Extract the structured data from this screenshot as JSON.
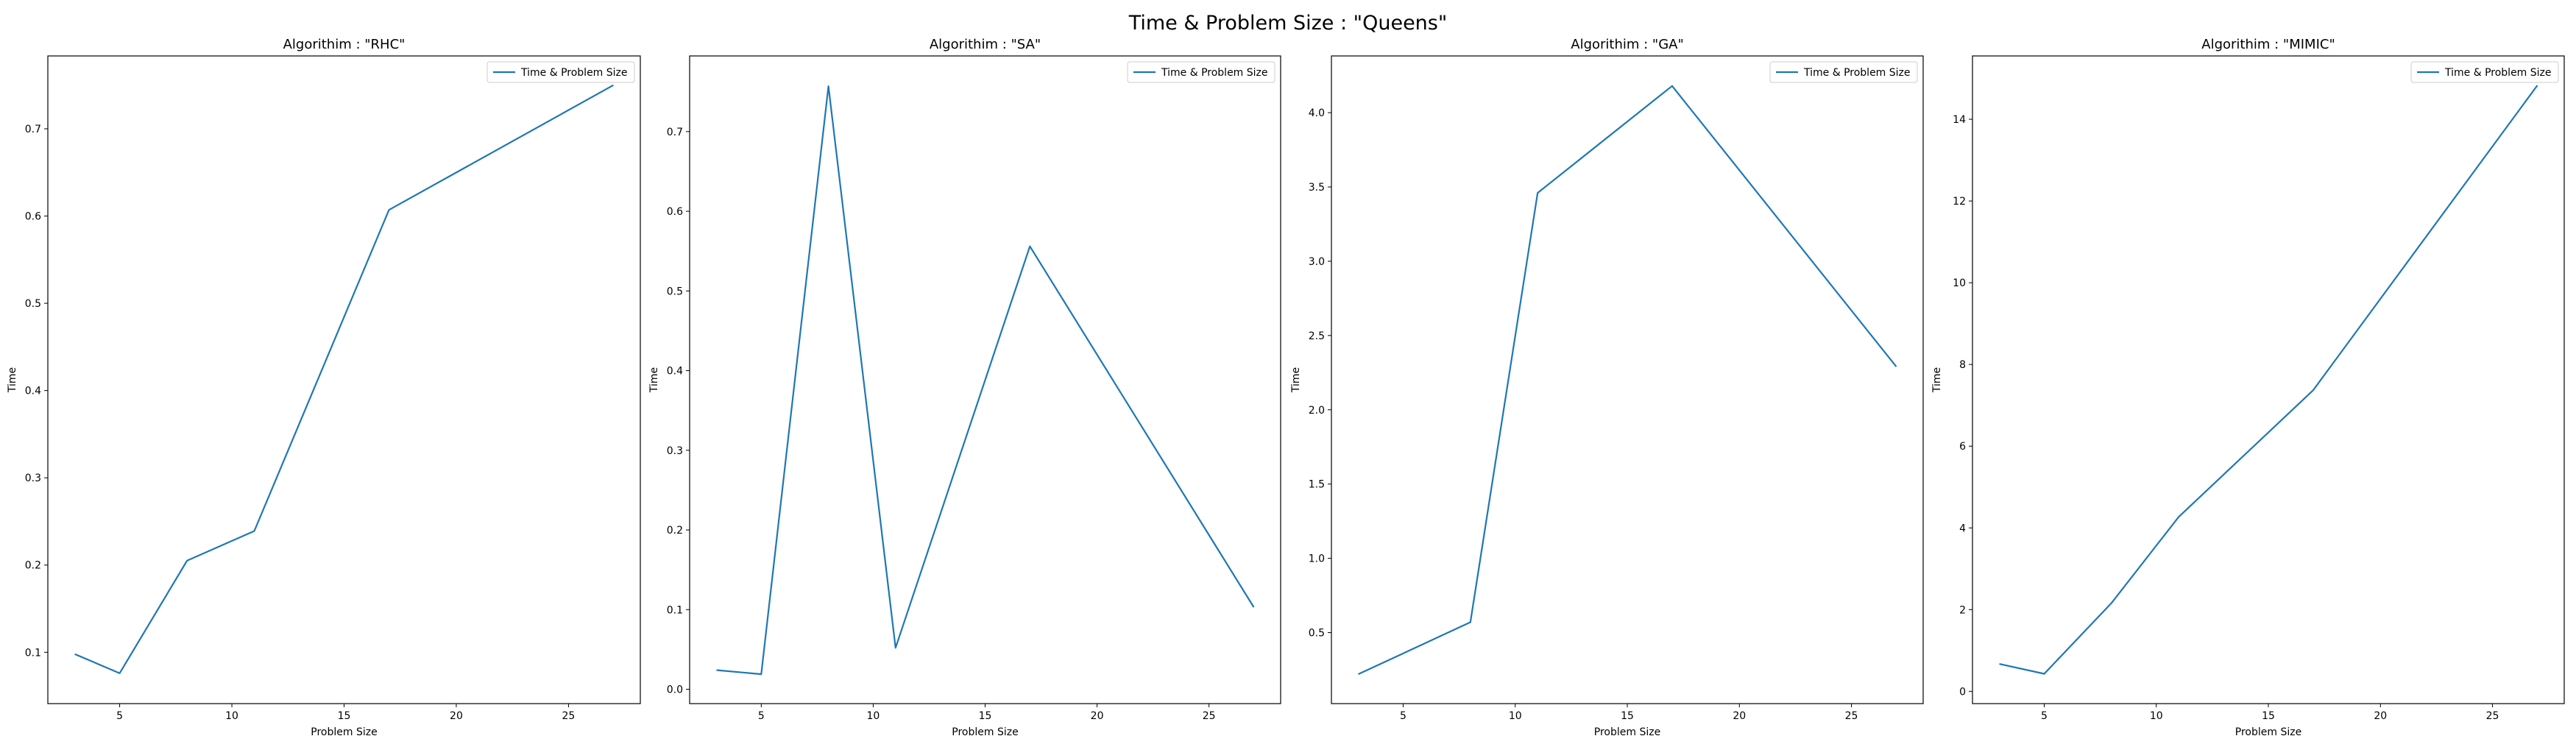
{
  "figure": {
    "title": "Time & Problem Size : \"Queens\""
  },
  "style": {
    "line_color": "#1f77b4",
    "axes_color": "#000000",
    "legend_border_color": "#cccccc"
  },
  "chart_data": [
    {
      "type": "line",
      "title": "Algorithim : \"RHC\"",
      "xlabel": "Problem Size",
      "ylabel": "Time",
      "xlim": [
        1.8,
        28.2
      ],
      "ylim": [
        0.0412,
        0.7835
      ],
      "xticks": [
        5,
        10,
        15,
        20,
        25
      ],
      "yticks": [
        0.1,
        0.2,
        0.3,
        0.4,
        0.5,
        0.6,
        0.7
      ],
      "grid": false,
      "legend_position": "top-right",
      "series": [
        {
          "name": "Time & Problem Size",
          "x": [
            3,
            5,
            8,
            11,
            17,
            27
          ],
          "y": [
            0.098,
            0.076,
            0.205,
            0.239,
            0.607,
            0.75
          ]
        }
      ]
    },
    {
      "type": "line",
      "title": "Algorithim : \"SA\"",
      "xlabel": "Problem Size",
      "ylabel": "Time",
      "xlim": [
        1.8,
        28.2
      ],
      "ylim": [
        -0.018,
        0.795
      ],
      "xticks": [
        5,
        10,
        15,
        20,
        25
      ],
      "yticks": [
        0.0,
        0.1,
        0.2,
        0.3,
        0.4,
        0.5,
        0.6,
        0.7
      ],
      "grid": false,
      "legend_position": "top-right",
      "series": [
        {
          "name": "Time & Problem Size",
          "x": [
            3,
            5,
            8,
            11,
            17,
            27
          ],
          "y": [
            0.024,
            0.019,
            0.757,
            0.052,
            0.556,
            0.103
          ]
        }
      ]
    },
    {
      "type": "line",
      "title": "Algorithim : \"GA\"",
      "xlabel": "Problem Size",
      "ylabel": "Time",
      "xlim": [
        1.8,
        28.2
      ],
      "ylim": [
        0.022,
        4.382
      ],
      "xticks": [
        5,
        10,
        15,
        20,
        25
      ],
      "yticks": [
        0.5,
        1.0,
        1.5,
        2.0,
        2.5,
        3.0,
        3.5,
        4.0
      ],
      "grid": false,
      "legend_position": "top-right",
      "series": [
        {
          "name": "Time & Problem Size",
          "x": [
            3,
            5,
            8,
            11,
            17,
            27
          ],
          "y": [
            0.22,
            0.36,
            0.57,
            3.46,
            4.18,
            2.29
          ]
        }
      ]
    },
    {
      "type": "line",
      "title": "Algorithim : \"MIMIC\"",
      "xlabel": "Problem Size",
      "ylabel": "Time",
      "xlim": [
        1.8,
        28.2
      ],
      "ylim": [
        -0.3,
        15.55
      ],
      "xticks": [
        5,
        10,
        15,
        20,
        25
      ],
      "yticks": [
        0,
        2,
        4,
        6,
        8,
        10,
        12,
        14
      ],
      "grid": false,
      "legend_position": "top-right",
      "series": [
        {
          "name": "Time & Problem Size",
          "x": [
            3,
            5,
            8,
            11,
            17,
            27
          ],
          "y": [
            0.67,
            0.43,
            2.16,
            4.27,
            7.37,
            14.83
          ]
        }
      ]
    }
  ]
}
